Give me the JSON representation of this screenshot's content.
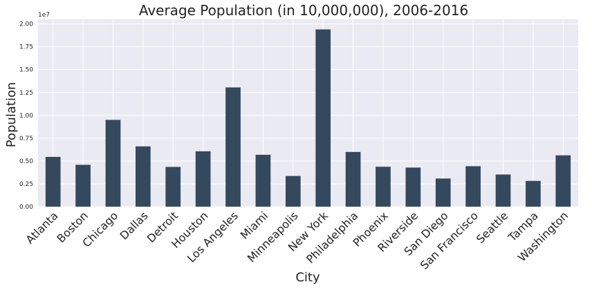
{
  "chart_data": {
    "type": "bar",
    "title": "Average Population (in 10,000,000), 2006-2016",
    "xlabel": "City",
    "ylabel": "Population",
    "offset_label": "1e7",
    "categories": [
      "Atlanta",
      "Boston",
      "Chicago",
      "Dallas",
      "Detroit",
      "Houston",
      "Los Angeles",
      "Miami",
      "Minneapolis",
      "New York",
      "Philadelphia",
      "Phoenix",
      "Riverside",
      "San Diego",
      "San Francisco",
      "Seattle",
      "Tampa",
      "Washington"
    ],
    "values": [
      5450000,
      4580000,
      9500000,
      6600000,
      4350000,
      6060000,
      13050000,
      5680000,
      3360000,
      19400000,
      5990000,
      4370000,
      4280000,
      3080000,
      4430000,
      3520000,
      2820000,
      5620000
    ],
    "ylim": [
      0,
      20500000
    ],
    "yticks": [
      0,
      2500000,
      5000000,
      7500000,
      10000000,
      12500000,
      15000000,
      17500000,
      20000000
    ],
    "ytick_labels": [
      "0.00",
      "0.25",
      "0.50",
      "0.75",
      "1.00",
      "1.25",
      "1.50",
      "1.75",
      "2.00"
    ],
    "grid": true,
    "colors": {
      "bar": "#34495e",
      "plot_bg": "#eaeaf2",
      "grid": "#ffffff",
      "text": "#222222"
    }
  }
}
